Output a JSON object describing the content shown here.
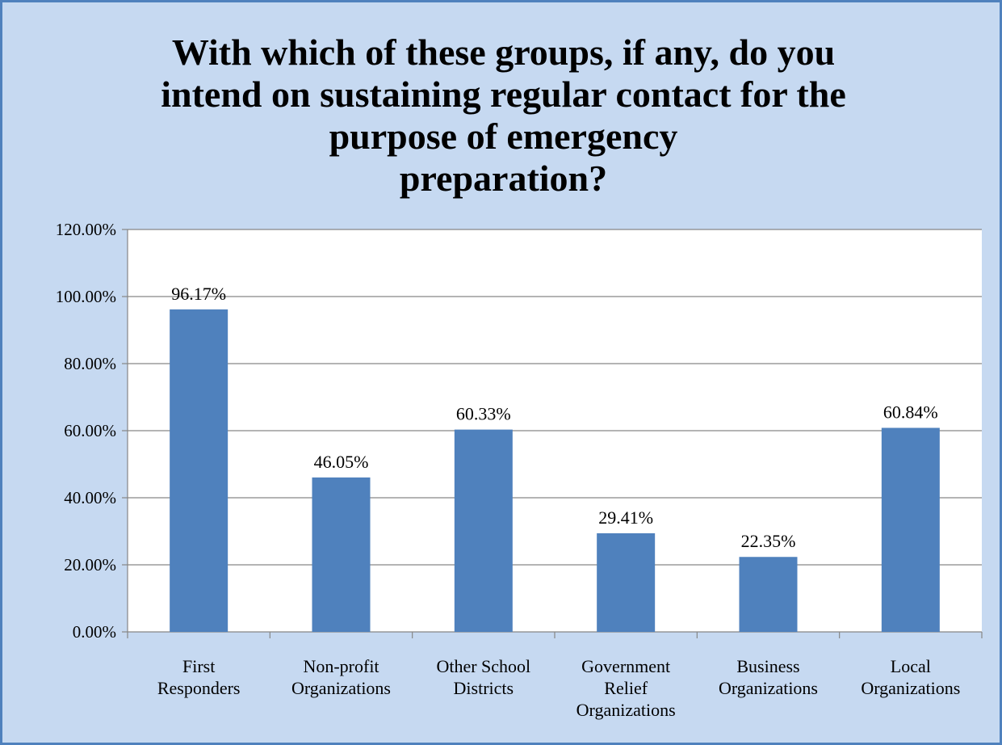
{
  "chart_data": {
    "type": "bar",
    "title_lines": [
      "With which of these groups, if any, do you",
      "intend on sustaining regular contact for the",
      "purpose of emergency",
      "preparation?"
    ],
    "categories": [
      [
        "First",
        "Responders"
      ],
      [
        "Non-profit",
        "Organizations"
      ],
      [
        "Other School",
        "Districts"
      ],
      [
        "Government",
        "Relief",
        "Organizations"
      ],
      [
        "Business",
        "Organizations"
      ],
      [
        "Local",
        "Organizations"
      ]
    ],
    "values": [
      96.17,
      46.05,
      60.33,
      29.41,
      22.35,
      60.84
    ],
    "value_labels": [
      "96.17%",
      "46.05%",
      "60.33%",
      "29.41%",
      "22.35%",
      "60.84%"
    ],
    "yticks": [
      0,
      20,
      40,
      60,
      80,
      100,
      120
    ],
    "ytick_labels": [
      "0.00%",
      "20.00%",
      "40.00%",
      "60.00%",
      "80.00%",
      "100.00%",
      "120.00%"
    ],
    "ylim": [
      0,
      120
    ],
    "grid": true,
    "bar_color": "#4f81bd",
    "plot_background": "#ffffff",
    "chart_background": "#c6d9f1"
  }
}
